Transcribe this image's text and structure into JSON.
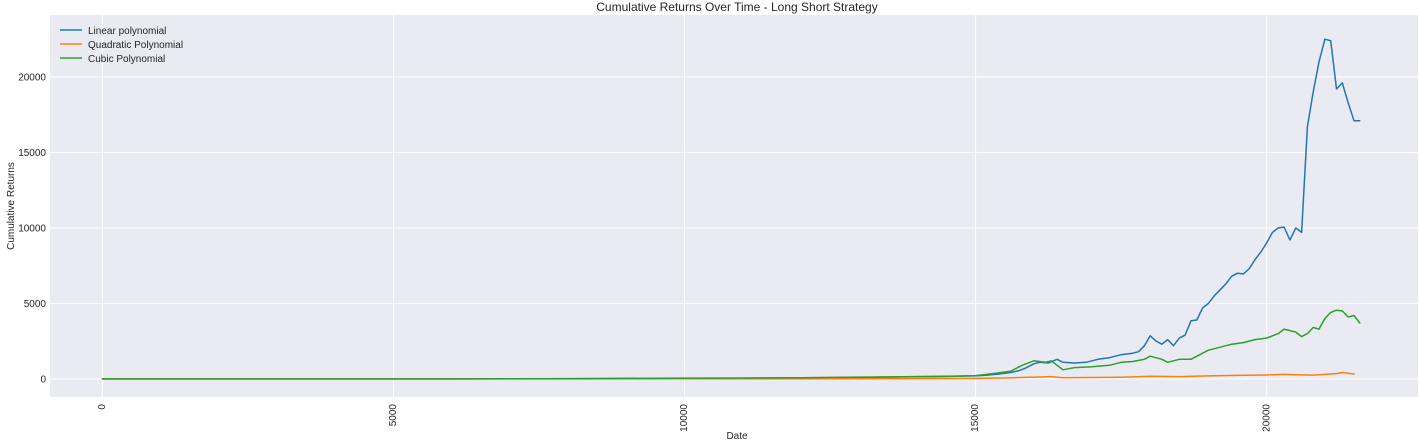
{
  "chart_data": {
    "type": "line",
    "title": "Cumulative Returns Over Time - Long Short Strategy",
    "xlabel": "Date",
    "ylabel": "Cumulative Returns",
    "xlim": [
      -900,
      22600
    ],
    "ylim": [
      -1200,
      24100
    ],
    "xticks": [
      0,
      5000,
      10000,
      15000,
      20000
    ],
    "yticks": [
      0,
      5000,
      10000,
      15000,
      20000
    ],
    "xtick_rotation": 90,
    "grid": true,
    "legend_position": "upper-left",
    "series": [
      {
        "name": "Linear polynomial",
        "color": "#1f77b4",
        "x": [
          0,
          2000,
          4000,
          6000,
          8000,
          10000,
          11000,
          12000,
          12500,
          13000,
          13500,
          14000,
          14500,
          15000,
          15200,
          15400,
          15600,
          15750,
          15850,
          16000,
          16100,
          16250,
          16400,
          16500,
          16700,
          16900,
          17100,
          17300,
          17500,
          17700,
          17800,
          17900,
          18000,
          18100,
          18200,
          18300,
          18400,
          18500,
          18600,
          18700,
          18800,
          18900,
          19000,
          19100,
          19200,
          19300,
          19400,
          19500,
          19600,
          19700,
          19800,
          19900,
          20000,
          20100,
          20200,
          20300,
          20400,
          20500,
          20600,
          20700,
          20800,
          20900,
          21000,
          21100,
          21200,
          21300,
          21400,
          21500,
          21600
        ],
        "y": [
          0,
          0,
          0,
          0,
          10,
          20,
          30,
          50,
          80,
          100,
          120,
          150,
          180,
          200,
          250,
          320,
          420,
          550,
          700,
          1000,
          1100,
          1050,
          1300,
          1100,
          1050,
          1100,
          1300,
          1400,
          1600,
          1700,
          1800,
          2200,
          2850,
          2500,
          2300,
          2600,
          2200,
          2700,
          2900,
          3850,
          3900,
          4700,
          5000,
          5500,
          5900,
          6300,
          6800,
          7000,
          6950,
          7300,
          7900,
          8400,
          9000,
          9700,
          10000,
          10050,
          9200,
          10000,
          9700,
          16700,
          19000,
          21000,
          22500,
          22400,
          19200,
          19600,
          18300,
          17100,
          17100
        ],
        "line_end": 21500
      },
      {
        "name": "Quadratic Polynomial",
        "color": "#ff7f0e",
        "x": [
          0,
          4000,
          8000,
          10000,
          12000,
          14000,
          15000,
          15500,
          16000,
          16300,
          16500,
          17000,
          17500,
          18000,
          18500,
          19000,
          19500,
          20000,
          20300,
          20500,
          20800,
          21000,
          21200,
          21300,
          21500
        ],
        "y": [
          0,
          0,
          0,
          5,
          10,
          20,
          30,
          60,
          120,
          150,
          80,
          90,
          110,
          170,
          150,
          200,
          230,
          260,
          300,
          280,
          250,
          300,
          350,
          420,
          320
        ]
      },
      {
        "name": "Cubic Polynomial",
        "color": "#2ca02c",
        "x": [
          0,
          2000,
          4000,
          6000,
          8000,
          10000,
          11000,
          12000,
          12500,
          13000,
          13500,
          14000,
          14500,
          15000,
          15300,
          15600,
          15800,
          16000,
          16200,
          16300,
          16400,
          16500,
          16700,
          17000,
          17300,
          17500,
          17700,
          17900,
          18000,
          18200,
          18300,
          18400,
          18500,
          18700,
          18900,
          19000,
          19200,
          19400,
          19600,
          19800,
          20000,
          20200,
          20300,
          20500,
          20600,
          20700,
          20800,
          20900,
          21000,
          21100,
          21200,
          21300,
          21400,
          21500,
          21600
        ],
        "y": [
          0,
          0,
          0,
          0,
          20,
          50,
          60,
          80,
          100,
          120,
          130,
          150,
          160,
          220,
          350,
          500,
          900,
          1200,
          1100,
          1200,
          900,
          600,
          750,
          800,
          900,
          1100,
          1150,
          1300,
          1500,
          1300,
          1100,
          1200,
          1300,
          1300,
          1700,
          1900,
          2100,
          2300,
          2400,
          2600,
          2700,
          3000,
          3300,
          3100,
          2800,
          3000,
          3400,
          3300,
          4000,
          4400,
          4550,
          4500,
          4100,
          4200,
          3700
        ]
      }
    ]
  }
}
